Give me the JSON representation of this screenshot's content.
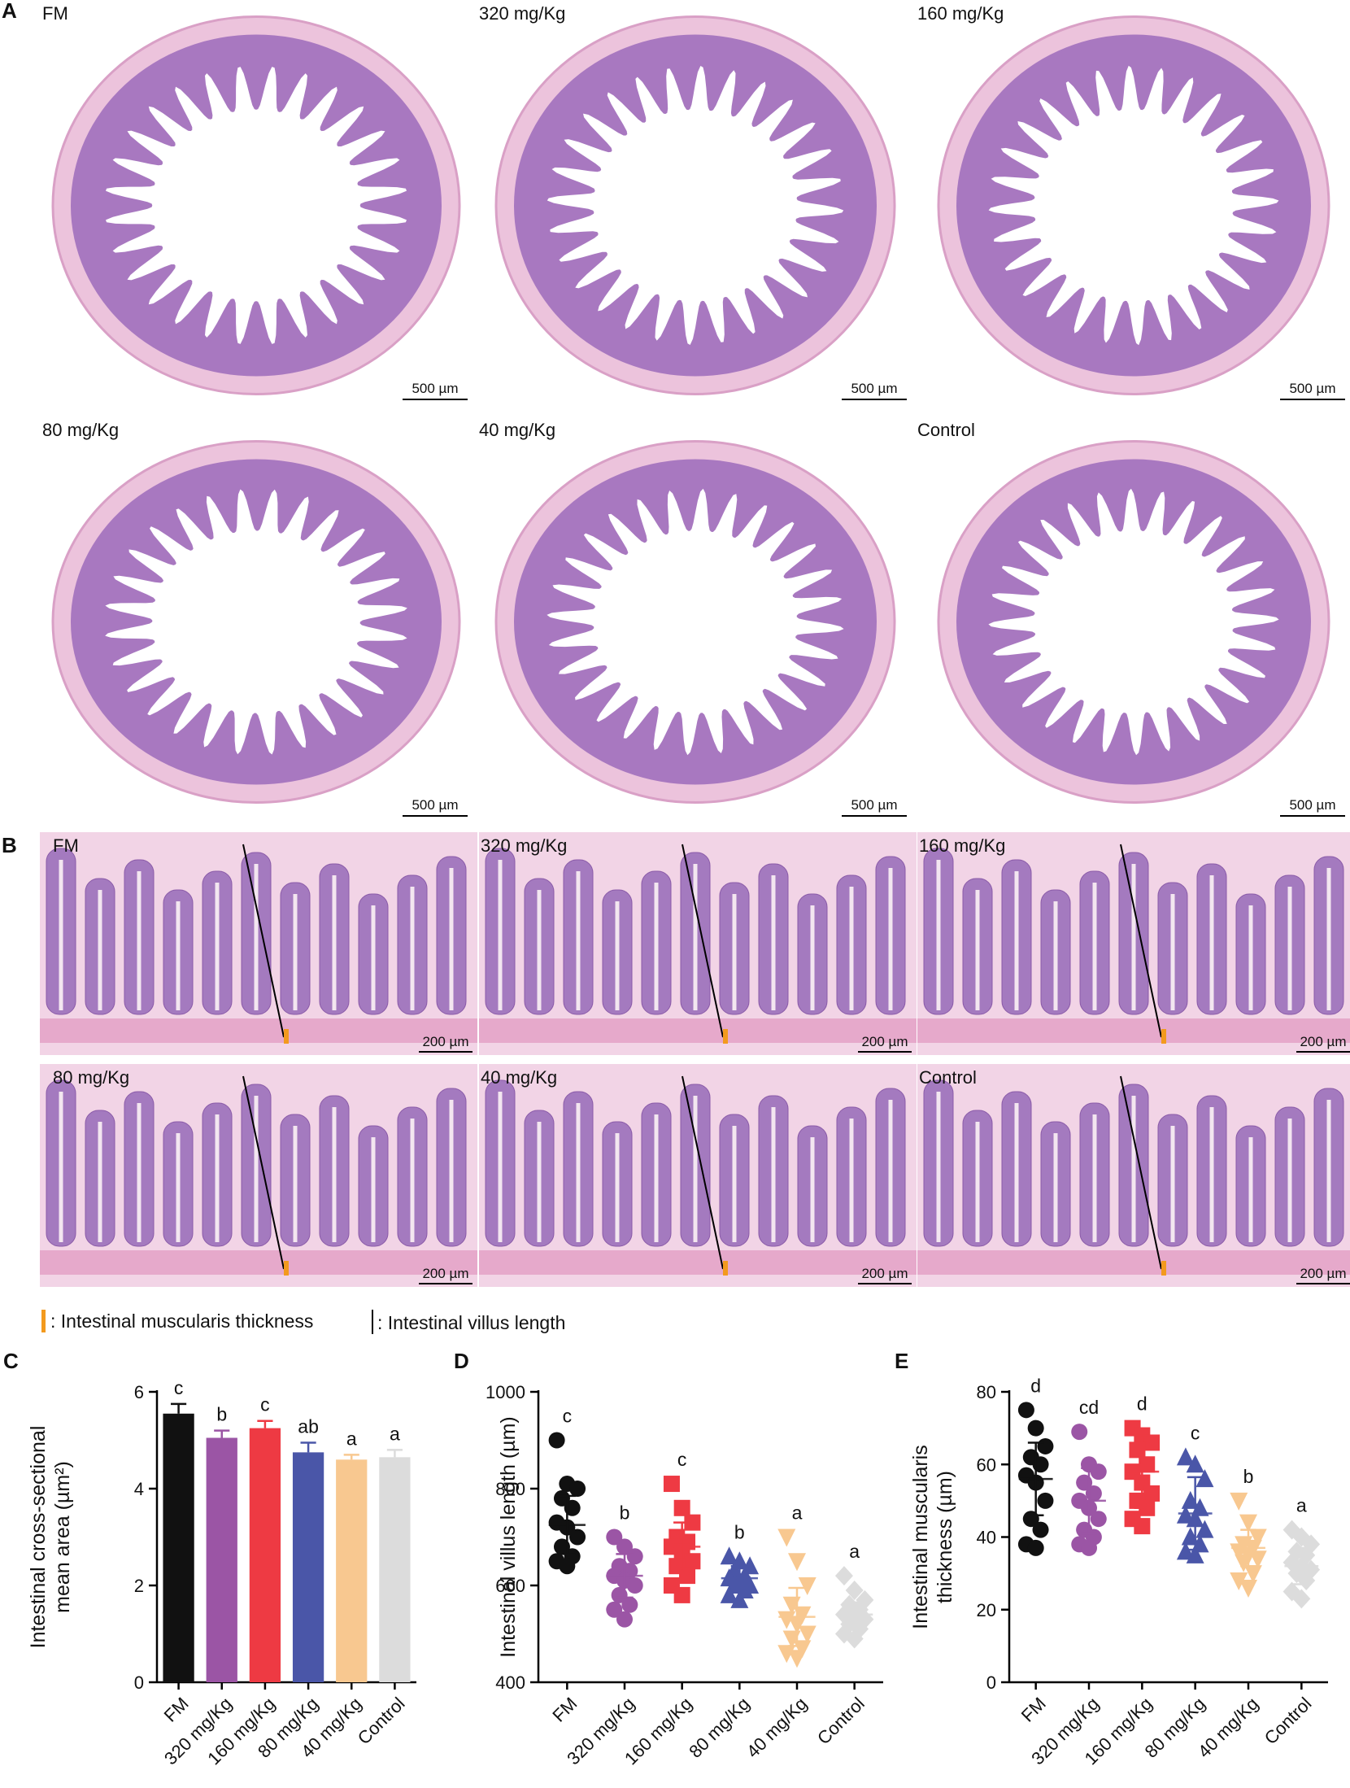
{
  "panel_a": {
    "label": "A",
    "scale_bar": "500 µm",
    "images": [
      "FM",
      "320 mg/Kg",
      "160 mg/Kg",
      "80 mg/Kg",
      "40 mg/Kg",
      "Control"
    ]
  },
  "panel_b": {
    "label": "B",
    "scale_bar": "200 µm",
    "images": [
      "FM",
      "320 mg/Kg",
      "160 mg/Kg",
      "80 mg/Kg",
      "40 mg/Kg",
      "Control"
    ]
  },
  "legend": {
    "muscularis": ": Intestinal muscularis thickness",
    "villus": ": Intestinal villus length"
  },
  "chart_data": [
    {
      "type": "bar",
      "panel": "C",
      "ylabel": [
        "Intestinal cross-sectional",
        "mean area (µm²)"
      ],
      "categories": [
        "FM",
        "320 mg/Kg",
        "160 mg/Kg",
        "80 mg/Kg",
        "40 mg/Kg",
        "Control"
      ],
      "values": [
        5.55,
        5.05,
        5.25,
        4.75,
        4.6,
        4.65
      ],
      "errors": [
        0.2,
        0.15,
        0.15,
        0.2,
        0.1,
        0.15
      ],
      "letters": [
        "c",
        "b",
        "c",
        "ab",
        "a",
        "a"
      ],
      "colors": [
        "#111111",
        "#9b55a5",
        "#ee3a43",
        "#4a56a8",
        "#f8c890",
        "#dcdcdc"
      ],
      "ylim": [
        0,
        6
      ],
      "yticks": [
        0,
        2,
        4,
        6
      ]
    },
    {
      "type": "scatter",
      "panel": "D",
      "ylabel": [
        "Intestinal villus length (µm)"
      ],
      "categories": [
        "FM",
        "320 mg/Kg",
        "160 mg/Kg",
        "80 mg/Kg",
        "40 mg/Kg",
        "Control"
      ],
      "points": [
        [
          900,
          810,
          800,
          780,
          760,
          730,
          720,
          700,
          680,
          660,
          650,
          640
        ],
        [
          700,
          680,
          660,
          640,
          630,
          620,
          610,
          600,
          580,
          560,
          550,
          530
        ],
        [
          810,
          760,
          730,
          700,
          690,
          680,
          670,
          650,
          640,
          620,
          600,
          580
        ],
        [
          660,
          650,
          640,
          630,
          620,
          615,
          610,
          600,
          600,
          590,
          580,
          570
        ],
        [
          700,
          650,
          600,
          560,
          540,
          530,
          520,
          500,
          490,
          470,
          460,
          450
        ],
        [
          620,
          590,
          570,
          560,
          550,
          540,
          535,
          530,
          520,
          510,
          500,
          490
        ]
      ],
      "means": [
        725,
        620,
        680,
        615,
        535,
        540
      ],
      "sds": [
        60,
        45,
        50,
        25,
        60,
        25
      ],
      "letters": [
        "c",
        "b",
        "c",
        "b",
        "a",
        "a"
      ],
      "colors": [
        "#111111",
        "#9b55a5",
        "#ee3a43",
        "#4a56a8",
        "#f8c890",
        "#dcdcdc"
      ],
      "markers": [
        "circle",
        "circle",
        "square",
        "triangle-up",
        "triangle-down",
        "diamond"
      ],
      "ylim": [
        400,
        1000
      ],
      "yticks": [
        400,
        600,
        800,
        1000
      ]
    },
    {
      "type": "scatter",
      "panel": "E",
      "ylabel": [
        "Intestinal muscularis",
        "thickness (µm)"
      ],
      "categories": [
        "FM",
        "320 mg/Kg",
        "160 mg/Kg",
        "80 mg/Kg",
        "40 mg/Kg",
        "Control"
      ],
      "points": [
        [
          75,
          70,
          65,
          62,
          60,
          57,
          55,
          50,
          45,
          42,
          38,
          37
        ],
        [
          69,
          60,
          58,
          55,
          52,
          50,
          48,
          45,
          42,
          40,
          38,
          37
        ],
        [
          70,
          68,
          66,
          64,
          60,
          58,
          55,
          52,
          50,
          48,
          45,
          43
        ],
        [
          62,
          60,
          56,
          50,
          48,
          46,
          45,
          42,
          40,
          38,
          36,
          35
        ],
        [
          50,
          44,
          40,
          38,
          37,
          36,
          35,
          34,
          33,
          30,
          28,
          26
        ],
        [
          42,
          40,
          38,
          36,
          35,
          33,
          32,
          31,
          30,
          28,
          25,
          23
        ]
      ],
      "means": [
        56,
        50,
        58,
        46.5,
        37,
        32
      ],
      "sds": [
        10,
        9,
        10,
        10,
        5,
        5
      ],
      "letters": [
        "d",
        "cd",
        "d",
        "c",
        "b",
        "a"
      ],
      "colors": [
        "#111111",
        "#9b55a5",
        "#ee3a43",
        "#4a56a8",
        "#f8c890",
        "#dcdcdc"
      ],
      "markers": [
        "circle",
        "circle",
        "square",
        "triangle-up",
        "triangle-down",
        "diamond"
      ],
      "ylim": [
        0,
        80
      ],
      "yticks": [
        0,
        20,
        40,
        60,
        80
      ]
    }
  ]
}
